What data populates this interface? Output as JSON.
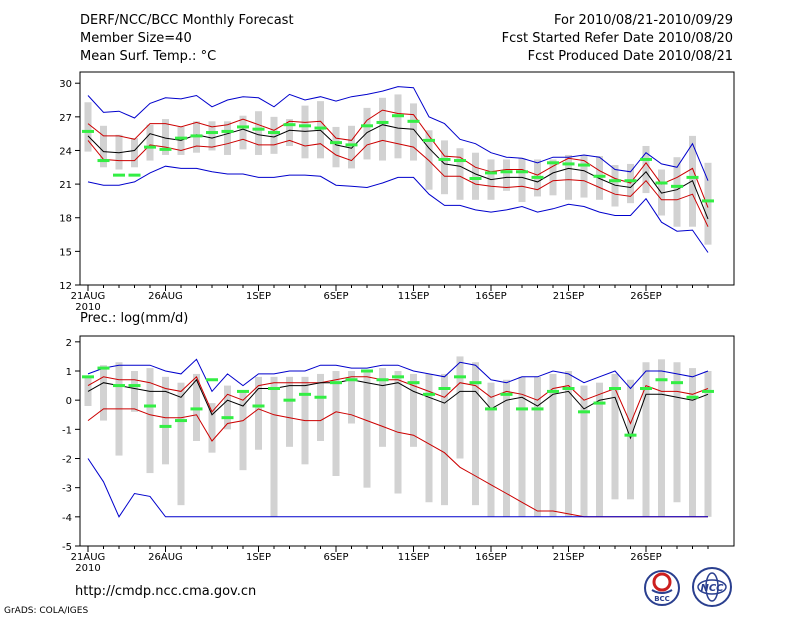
{
  "header": {
    "title": "DERF/NCC/BCC Monthly Forecast",
    "member_size": "Member Size=40",
    "variable": "Mean Surf. Temp.: °C",
    "period": "For 2010/08/21-2010/09/29",
    "fcst_started": "Fcst Started Refer Date 2010/08/20",
    "fcst_produced": "Fcst Produced Date 2010/08/21"
  },
  "footer": {
    "url": "http://cmdp.ncc.cma.gov.cn",
    "credit": "GrADS: COLA/IGES",
    "logo_bcc": "BCC",
    "logo_ncc": "NCC"
  },
  "colors": {
    "box": "#d2d2d2",
    "mean": "#000000",
    "std": "#cc0000",
    "extreme": "#0000cc",
    "obs": "#33ee44"
  },
  "chart_data": [
    {
      "type": "line",
      "id": "temperature",
      "title": "",
      "ylabel": "Mean Surf. Temp.: °C",
      "ylim": [
        12,
        31
      ],
      "yticks": [
        12,
        15,
        18,
        21,
        24,
        27,
        30
      ],
      "xlabels": [
        {
          "day": 0,
          "label": "21AUG",
          "sub": "2010"
        },
        {
          "day": 5,
          "label": "26AUG"
        },
        {
          "day": 11,
          "label": "1SEP"
        },
        {
          "day": 16,
          "label": "6SEP"
        },
        {
          "day": 21,
          "label": "11SEP"
        },
        {
          "day": 26,
          "label": "16SEP"
        },
        {
          "day": 31,
          "label": "21SEP"
        },
        {
          "day": 36,
          "label": "26SEP"
        }
      ],
      "series": [
        {
          "name": "upper-extreme",
          "values": [
            28.9,
            27.4,
            27.5,
            26.9,
            28.2,
            28.7,
            28.6,
            28.9,
            27.9,
            28.5,
            28.8,
            28.7,
            27.9,
            29.0,
            28.5,
            28.8,
            28.4,
            28.8,
            29.0,
            29.3,
            29.7,
            29.6,
            27.0,
            26.4,
            25.0,
            24.6,
            23.8,
            23.4,
            23.3,
            22.9,
            23.4,
            23.4,
            23.6,
            23.4,
            22.3,
            22.1,
            23.8,
            22.8,
            22.5,
            24.6,
            21.3
          ]
        },
        {
          "name": "upper-std",
          "values": [
            26.4,
            25.3,
            25.3,
            25.0,
            26.4,
            26.4,
            26.1,
            26.5,
            26.1,
            26.3,
            26.8,
            26.3,
            25.8,
            26.6,
            26.5,
            26.6,
            25.1,
            24.9,
            26.7,
            27.6,
            27.3,
            27.2,
            25.3,
            23.5,
            23.4,
            22.5,
            22.1,
            22.3,
            22.3,
            21.8,
            22.6,
            23.3,
            23.1,
            22.2,
            21.5,
            21.1,
            22.9,
            21.0,
            21.6,
            22.4,
            18.9
          ]
        },
        {
          "name": "mean",
          "values": [
            25.3,
            23.9,
            23.8,
            24.0,
            25.5,
            25.1,
            24.9,
            25.4,
            25.1,
            25.5,
            25.9,
            25.4,
            25.2,
            25.8,
            25.7,
            25.8,
            24.5,
            24.2,
            25.6,
            26.3,
            26.0,
            25.9,
            24.2,
            22.8,
            22.6,
            21.9,
            21.4,
            21.6,
            21.6,
            21.2,
            22.0,
            22.4,
            22.2,
            21.5,
            20.9,
            20.7,
            22.1,
            20.2,
            20.5,
            21.3,
            17.9
          ]
        },
        {
          "name": "lower-std",
          "values": [
            24.9,
            23.2,
            23.1,
            23.1,
            24.5,
            24.3,
            24.0,
            24.4,
            24.3,
            24.6,
            25.0,
            24.5,
            24.5,
            24.9,
            24.4,
            24.6,
            23.6,
            23.1,
            24.5,
            24.9,
            24.6,
            24.3,
            23.1,
            21.7,
            21.7,
            21.0,
            20.8,
            20.7,
            20.8,
            20.5,
            21.3,
            21.4,
            21.3,
            20.7,
            20.1,
            19.9,
            21.3,
            19.6,
            19.6,
            20.1,
            17.2
          ]
        },
        {
          "name": "lower-extreme",
          "values": [
            21.2,
            20.9,
            20.9,
            21.2,
            22.0,
            22.6,
            22.4,
            22.4,
            22.1,
            21.9,
            21.9,
            21.6,
            21.6,
            21.8,
            21.8,
            21.7,
            20.9,
            20.8,
            20.7,
            21.1,
            21.6,
            21.6,
            20.1,
            19.1,
            19.1,
            18.7,
            18.5,
            18.7,
            19.0,
            18.5,
            18.8,
            19.2,
            19.0,
            18.5,
            18.2,
            18.2,
            19.7,
            17.6,
            16.8,
            16.9,
            14.9
          ]
        }
      ],
      "boxes": [
        [
          23.9,
          28.3
        ],
        [
          22.5,
          26.2
        ],
        [
          22.3,
          25.4
        ],
        [
          22.5,
          25.1
        ],
        [
          23.1,
          26.3
        ],
        [
          23.6,
          26.8
        ],
        [
          23.6,
          26.1
        ],
        [
          23.8,
          26.6
        ],
        [
          24.0,
          26.6
        ],
        [
          23.6,
          26.6
        ],
        [
          24.1,
          27.1
        ],
        [
          23.6,
          27.5
        ],
        [
          23.7,
          27.0
        ],
        [
          24.4,
          26.8
        ],
        [
          23.3,
          28.0
        ],
        [
          23.3,
          28.4
        ],
        [
          22.5,
          26.1
        ],
        [
          22.4,
          26.2
        ],
        [
          23.2,
          27.8
        ],
        [
          23.1,
          28.7
        ],
        [
          23.3,
          29.0
        ],
        [
          23.1,
          28.2
        ],
        [
          20.5,
          25.8
        ],
        [
          20.1,
          24.9
        ],
        [
          19.6,
          24.2
        ],
        [
          19.6,
          23.8
        ],
        [
          19.6,
          23.2
        ],
        [
          20.4,
          23.2
        ],
        [
          19.4,
          23.3
        ],
        [
          19.9,
          23.2
        ],
        [
          20.0,
          23.2
        ],
        [
          19.6,
          23.6
        ],
        [
          19.8,
          23.6
        ],
        [
          19.6,
          23.5
        ],
        [
          19.0,
          22.7
        ],
        [
          19.3,
          22.8
        ],
        [
          20.2,
          24.4
        ],
        [
          18.2,
          22.3
        ],
        [
          17.2,
          23.4
        ],
        [
          17.2,
          25.3
        ],
        [
          15.6,
          22.9
        ]
      ],
      "observed": [
        25.7,
        23.1,
        21.8,
        21.8,
        24.3,
        24.1,
        25.1,
        25.3,
        25.6,
        25.7,
        26.1,
        25.9,
        25.6,
        26.3,
        26.2,
        26.0,
        24.7,
        24.5,
        26.2,
        26.5,
        27.1,
        26.6,
        24.9,
        23.2,
        23.1,
        21.5,
        22.0,
        22.1,
        22.1,
        21.6,
        22.9,
        22.8,
        22.7,
        21.7,
        21.3,
        21.3,
        23.2,
        21.1,
        20.8,
        21.6,
        19.5
      ]
    },
    {
      "type": "line",
      "id": "precipitation",
      "title": "Prec.: log(mm/d)",
      "ylabel": "Prec.: log(mm/d)",
      "ylim": [
        -5,
        2.2
      ],
      "yticks": [
        -5,
        -4,
        -3,
        -2,
        -1,
        0,
        1,
        2
      ],
      "xlabels": [
        {
          "day": 0,
          "label": "21AUG",
          "sub": "2010"
        },
        {
          "day": 5,
          "label": "26AUG"
        },
        {
          "day": 11,
          "label": "1SEP"
        },
        {
          "day": 16,
          "label": "6SEP"
        },
        {
          "day": 21,
          "label": "11SEP"
        },
        {
          "day": 26,
          "label": "16SEP"
        },
        {
          "day": 31,
          "label": "21SEP"
        },
        {
          "day": 36,
          "label": "26SEP"
        }
      ],
      "series": [
        {
          "name": "upper-extreme",
          "values": [
            0.9,
            1.1,
            1.2,
            1.2,
            1.2,
            1.0,
            0.9,
            1.4,
            0.3,
            0.9,
            0.5,
            0.9,
            0.9,
            1.0,
            1.0,
            1.2,
            1.2,
            1.1,
            1.1,
            1.2,
            1.2,
            1.0,
            0.9,
            0.8,
            1.3,
            1.2,
            0.7,
            0.6,
            0.8,
            0.8,
            1.0,
            0.9,
            0.6,
            0.8,
            1.0,
            0.4,
            1.0,
            1.0,
            0.9,
            0.8,
            1.0
          ]
        },
        {
          "name": "upper-std",
          "values": [
            0.5,
            0.8,
            0.7,
            0.7,
            0.6,
            0.4,
            0.3,
            0.8,
            -0.4,
            0.2,
            0.0,
            0.5,
            0.6,
            0.6,
            0.6,
            0.6,
            0.7,
            0.8,
            0.8,
            0.7,
            0.7,
            0.5,
            0.3,
            0.1,
            0.6,
            0.5,
            0.1,
            0.3,
            0.2,
            0.0,
            0.4,
            0.5,
            0.0,
            0.2,
            0.4,
            -0.8,
            0.5,
            0.3,
            0.3,
            0.2,
            0.4
          ]
        },
        {
          "name": "mean",
          "values": [
            0.3,
            0.6,
            0.5,
            0.4,
            0.3,
            0.3,
            0.1,
            0.7,
            -0.5,
            0.0,
            -0.2,
            0.4,
            0.4,
            0.5,
            0.5,
            0.6,
            0.6,
            0.7,
            0.6,
            0.5,
            0.6,
            0.3,
            0.1,
            -0.1,
            0.3,
            0.3,
            -0.3,
            0.0,
            0.1,
            -0.2,
            0.2,
            0.3,
            -0.3,
            0.0,
            0.1,
            -1.3,
            0.2,
            0.2,
            0.1,
            0.0,
            0.2
          ]
        },
        {
          "name": "lower-std",
          "values": [
            -0.7,
            -0.3,
            -0.3,
            -0.3,
            -0.5,
            -0.6,
            -0.6,
            -0.5,
            -1.4,
            -0.8,
            -0.7,
            -0.3,
            -0.5,
            -0.6,
            -0.7,
            -0.7,
            -0.4,
            -0.5,
            -0.7,
            -0.9,
            -1.1,
            -1.2,
            -1.5,
            -1.8,
            -2.3,
            -2.6,
            -2.9,
            -3.2,
            -3.5,
            -3.8,
            -3.8,
            -3.9,
            -4.0,
            -4.0,
            -4.0,
            -4.0,
            -4.0,
            -4.0,
            -4.0,
            -4.0,
            -4.0
          ]
        },
        {
          "name": "lower-extreme",
          "values": [
            -2.0,
            -2.8,
            -4.0,
            -3.2,
            -3.3,
            -4.0,
            -4.0,
            -4.0,
            -4.0,
            -4.0,
            -4.0,
            -4.0,
            -4.0,
            -4.0,
            -4.0,
            -4.0,
            -4.0,
            -4.0,
            -4.0,
            -4.0,
            -4.0,
            -4.0,
            -4.0,
            -4.0,
            -4.0,
            -4.0,
            -4.0,
            -4.0,
            -4.0,
            -4.0,
            -4.0,
            -4.0,
            -4.0,
            -4.0,
            -4.0,
            -4.0,
            -4.0,
            -4.0,
            -4.0,
            -4.0,
            -4.0
          ]
        }
      ],
      "boxes": [
        [
          -0.2,
          0.8
        ],
        [
          -0.7,
          1.2
        ],
        [
          -1.9,
          1.3
        ],
        [
          -0.4,
          1.0
        ],
        [
          -2.5,
          1.1
        ],
        [
          -2.2,
          0.8
        ],
        [
          -3.6,
          0.6
        ],
        [
          -1.4,
          0.9
        ],
        [
          -1.8,
          -0.1
        ],
        [
          -1.0,
          0.5
        ],
        [
          -2.4,
          0.3
        ],
        [
          -1.7,
          0.8
        ],
        [
          -4.0,
          0.8
        ],
        [
          -1.6,
          0.8
        ],
        [
          -2.2,
          0.8
        ],
        [
          -1.4,
          0.9
        ],
        [
          -2.6,
          1.0
        ],
        [
          -0.8,
          1.0
        ],
        [
          -3.0,
          1.0
        ],
        [
          -1.6,
          1.1
        ],
        [
          -3.2,
          1.0
        ],
        [
          -1.6,
          0.9
        ],
        [
          -3.5,
          0.9
        ],
        [
          -3.6,
          0.9
        ],
        [
          -2.0,
          1.5
        ],
        [
          -3.6,
          1.3
        ],
        [
          -4.0,
          0.6
        ],
        [
          -4.0,
          0.7
        ],
        [
          -4.0,
          0.8
        ],
        [
          -4.0,
          0.8
        ],
        [
          -4.0,
          0.9
        ],
        [
          -4.0,
          1.0
        ],
        [
          -4.0,
          0.5
        ],
        [
          -4.0,
          0.6
        ],
        [
          -3.4,
          0.9
        ],
        [
          -3.4,
          0.7
        ],
        [
          -4.0,
          1.3
        ],
        [
          -4.0,
          1.4
        ],
        [
          -3.5,
          1.3
        ],
        [
          -4.0,
          1.1
        ],
        [
          -4.0,
          1.0
        ]
      ],
      "observed": [
        0.8,
        1.1,
        0.5,
        0.5,
        -0.2,
        -0.9,
        -0.7,
        -0.3,
        0.7,
        -0.6,
        0.3,
        -0.2,
        0.4,
        0.0,
        0.2,
        0.1,
        0.6,
        0.7,
        1.0,
        0.7,
        0.8,
        0.6,
        0.2,
        0.4,
        0.8,
        0.6,
        -0.3,
        0.2,
        -0.3,
        -0.3,
        0.3,
        0.4,
        -0.4,
        -0.1,
        0.4,
        -1.2,
        0.4,
        0.7,
        0.6,
        0.1,
        0.3
      ]
    }
  ]
}
